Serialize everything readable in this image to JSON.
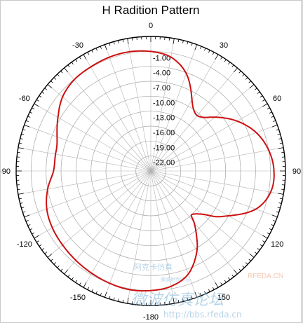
{
  "chart_data": {
    "type": "polar-line",
    "title": "H Radition Pattern",
    "angle_ticks": [
      0,
      30,
      60,
      90,
      120,
      150,
      -180,
      -150,
      -120,
      -90,
      -60,
      -30
    ],
    "radial_ticks": [
      "-1.00",
      "-4.00",
      "-7.00",
      "-10.00",
      "-13.00",
      "-16.00",
      "-19.00",
      "-22.00"
    ],
    "rlim": [
      -25,
      2
    ],
    "grid": true,
    "series": [
      {
        "color": "#cc1111",
        "points": [
          [
            0,
            -1.0
          ],
          [
            10,
            -1.8
          ],
          [
            20,
            -4.2
          ],
          [
            30,
            -8.5
          ],
          [
            35,
            -10.0
          ],
          [
            40,
            -10.5
          ],
          [
            45,
            -9.8
          ],
          [
            50,
            -8.2
          ],
          [
            60,
            -5.0
          ],
          [
            70,
            -2.5
          ],
          [
            80,
            -1.0
          ],
          [
            90,
            -0.3
          ],
          [
            100,
            -0.6
          ],
          [
            110,
            -2.6
          ],
          [
            120,
            -7.0
          ],
          [
            125,
            -9.0
          ],
          [
            130,
            -11.5
          ],
          [
            137,
            -13.0
          ],
          [
            140,
            -11.5
          ],
          [
            145,
            -9.0
          ],
          [
            150,
            -6.5
          ],
          [
            160,
            -3.0
          ],
          [
            170,
            -1.5
          ],
          [
            180,
            -1.0
          ],
          [
            190,
            -0.8
          ],
          [
            200,
            -1.0
          ],
          [
            210,
            -1.3
          ],
          [
            220,
            -1.6
          ],
          [
            230,
            -1.9
          ],
          [
            240,
            -2.2
          ],
          [
            250,
            -2.8
          ],
          [
            260,
            -4.0
          ],
          [
            270,
            -5.5
          ],
          [
            280,
            -5.6
          ],
          [
            285,
            -5.5
          ],
          [
            290,
            -5.0
          ],
          [
            300,
            -3.5
          ],
          [
            310,
            -1.9
          ],
          [
            320,
            -1.1
          ],
          [
            330,
            -0.9
          ],
          [
            340,
            -0.7
          ],
          [
            350,
            -0.7
          ],
          [
            360,
            -1.0
          ]
        ]
      }
    ]
  },
  "watermark": {
    "top_cn": "阿克卡仿真",
    "site_small": "微波射频论坛",
    "brand": "RFEDA.CN",
    "big_cn": "微波仿真论坛",
    "url": "http://bbs.rfeda.cn"
  },
  "colors": {
    "trace": "#cc1111",
    "grid": "#999999",
    "outer": "#000000"
  }
}
